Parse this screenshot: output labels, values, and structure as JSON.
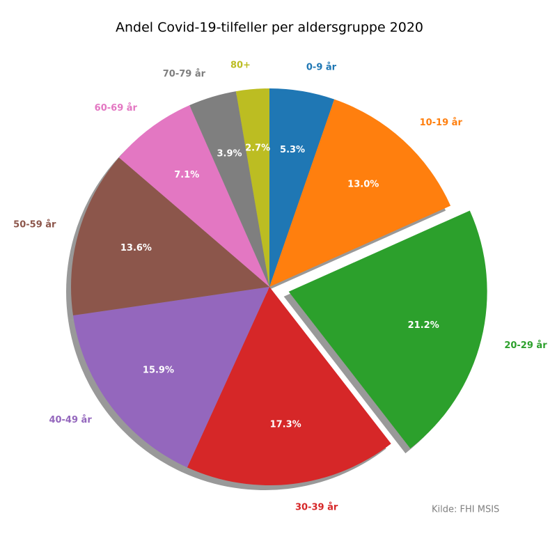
{
  "chart_data": {
    "type": "pie",
    "title": "Andel Covid-19-tilfeller per aldersgruppe 2020",
    "source": "Kilde: FHI MSIS",
    "categories": [
      "0-9 år",
      "10-19 år",
      "20-29 år",
      "30-39 år",
      "40-49 år",
      "50-59 år",
      "60-69 år",
      "70-79 år",
      "80+"
    ],
    "values": [
      5.3,
      13.0,
      21.2,
      17.3,
      15.9,
      13.6,
      7.1,
      3.9,
      2.7
    ],
    "value_labels": [
      "5.3%",
      "13.0%",
      "21.2%",
      "17.3%",
      "15.9%",
      "13.6%",
      "7.1%",
      "3.9%",
      "2.7%"
    ],
    "colors": [
      "#1f77b4",
      "#ff7f0e",
      "#2ca02c",
      "#d62728",
      "#9467bd",
      "#8c564b",
      "#e377c2",
      "#7f7f7f",
      "#bcbd22"
    ],
    "explode": [
      0,
      0,
      0.1,
      0,
      0,
      0,
      0,
      0,
      0
    ],
    "startangle": 90,
    "counterclock": false,
    "shadow": true
  }
}
